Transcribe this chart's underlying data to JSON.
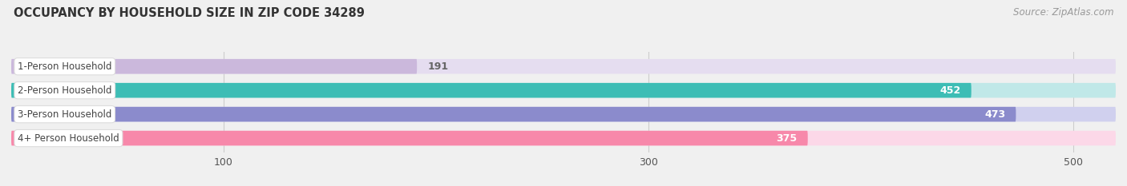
{
  "title": "OCCUPANCY BY HOUSEHOLD SIZE IN ZIP CODE 34289",
  "source": "Source: ZipAtlas.com",
  "categories": [
    "1-Person Household",
    "2-Person Household",
    "3-Person Household",
    "4+ Person Household"
  ],
  "values": [
    191,
    452,
    473,
    375
  ],
  "bar_colors": [
    "#cbb8dc",
    "#3dbdb5",
    "#8b8bcc",
    "#f788aa"
  ],
  "background_colors": [
    "#e5ddf0",
    "#c0e8e8",
    "#d0d0ee",
    "#fcd8e8"
  ],
  "value_colors": [
    "#666666",
    "#ffffff",
    "#ffffff",
    "#ffffff"
  ],
  "xlim": [
    0,
    520
  ],
  "xticks": [
    100,
    300,
    500
  ],
  "figsize": [
    14.06,
    2.33
  ],
  "dpi": 100,
  "bg_color": "#f0f0f0"
}
